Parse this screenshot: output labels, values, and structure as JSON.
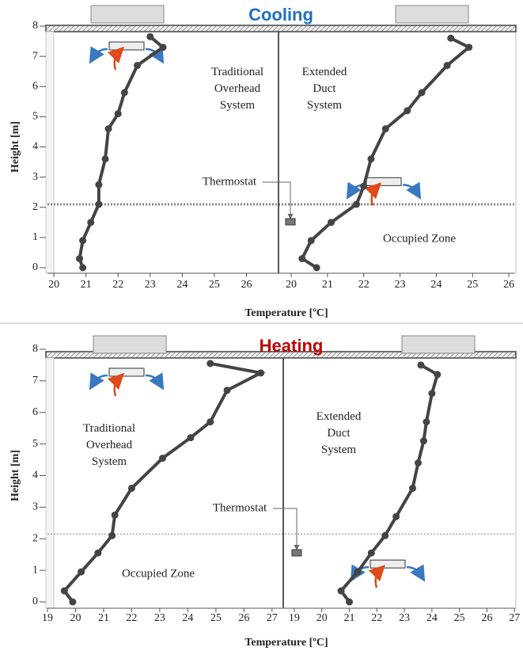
{
  "chart_data": [
    {
      "type": "line",
      "title": "Cooling",
      "title_color": "#1f6fc1",
      "ylabel": "Height [m]",
      "xlabel": "Temperature [ºC]",
      "ylim": [
        0,
        8
      ],
      "yticks": [
        0,
        1,
        2,
        3,
        4,
        5,
        6,
        7,
        8
      ],
      "thermostat": "Thermostat",
      "occupied_zone": "Occupied Zone",
      "panels": [
        {
          "label": [
            "Traditional",
            "Overhead",
            "System"
          ],
          "xlim": [
            19.8,
            27.0
          ],
          "xticks": [
            20,
            21,
            22,
            23,
            24,
            25,
            26
          ],
          "series": [
            {
              "color": "#444444",
              "x": [
                20.9,
                20.8,
                20.9,
                21.15,
                21.4,
                21.4,
                21.6,
                21.7,
                22.0,
                22.2,
                22.6,
                23.4,
                23.0
              ],
              "values": [
                0.0,
                0.3,
                0.9,
                1.5,
                2.1,
                2.75,
                3.6,
                4.6,
                5.1,
                5.8,
                6.7,
                7.3,
                7.65
              ]
            }
          ]
        },
        {
          "label": [
            "Extended",
            "Duct",
            "System"
          ],
          "xlim": [
            19.65,
            26.15
          ],
          "xticks": [
            20,
            21,
            22,
            23,
            24,
            25,
            26
          ],
          "series": [
            {
              "color": "#444444",
              "x": [
                20.7,
                20.3,
                20.55,
                21.1,
                21.8,
                22.0,
                22.2,
                22.6,
                23.2,
                23.6,
                24.3,
                24.9,
                24.4
              ],
              "values": [
                0.0,
                0.3,
                0.9,
                1.5,
                2.1,
                2.7,
                3.6,
                4.6,
                5.2,
                5.8,
                6.7,
                7.3,
                7.6
              ]
            }
          ]
        }
      ]
    },
    {
      "type": "line",
      "title": "Heating",
      "title_color": "#c00000",
      "ylabel": "Height [m]",
      "xlabel": "Temperature [ºC]",
      "ylim": [
        0,
        8
      ],
      "yticks": [
        0,
        1,
        2,
        3,
        4,
        5,
        6,
        7,
        8
      ],
      "thermostat": "Thermostat",
      "occupied_zone": "Occupied Zone",
      "panels": [
        {
          "label": [
            "Traditional",
            "Overhead",
            "System"
          ],
          "xlim": [
            19.0,
            27.4
          ],
          "xticks": [
            19,
            20,
            21,
            22,
            23,
            24,
            25,
            26,
            27
          ],
          "series": [
            {
              "color": "#444444",
              "x": [
                19.9,
                19.6,
                20.2,
                20.8,
                21.3,
                21.4,
                22.0,
                23.1,
                24.1,
                24.8,
                25.4,
                26.6,
                24.8
              ],
              "values": [
                0.0,
                0.35,
                0.95,
                1.55,
                2.1,
                2.75,
                3.6,
                4.55,
                5.2,
                5.7,
                6.7,
                7.25,
                7.55
              ]
            }
          ]
        },
        {
          "label": [
            "Extended",
            "Duct",
            "System"
          ],
          "xlim": [
            18.6,
            27.05
          ],
          "xticks": [
            19,
            20,
            21,
            22,
            23,
            24,
            25,
            26,
            27
          ],
          "series": [
            {
              "color": "#444444",
              "x": [
                21.0,
                20.7,
                21.3,
                21.8,
                22.3,
                22.7,
                23.3,
                23.5,
                23.7,
                23.8,
                24.0,
                24.2,
                23.6
              ],
              "values": [
                0.0,
                0.35,
                0.95,
                1.55,
                2.1,
                2.7,
                3.6,
                4.4,
                5.1,
                5.7,
                6.6,
                7.2,
                7.5
              ]
            }
          ]
        }
      ]
    }
  ]
}
